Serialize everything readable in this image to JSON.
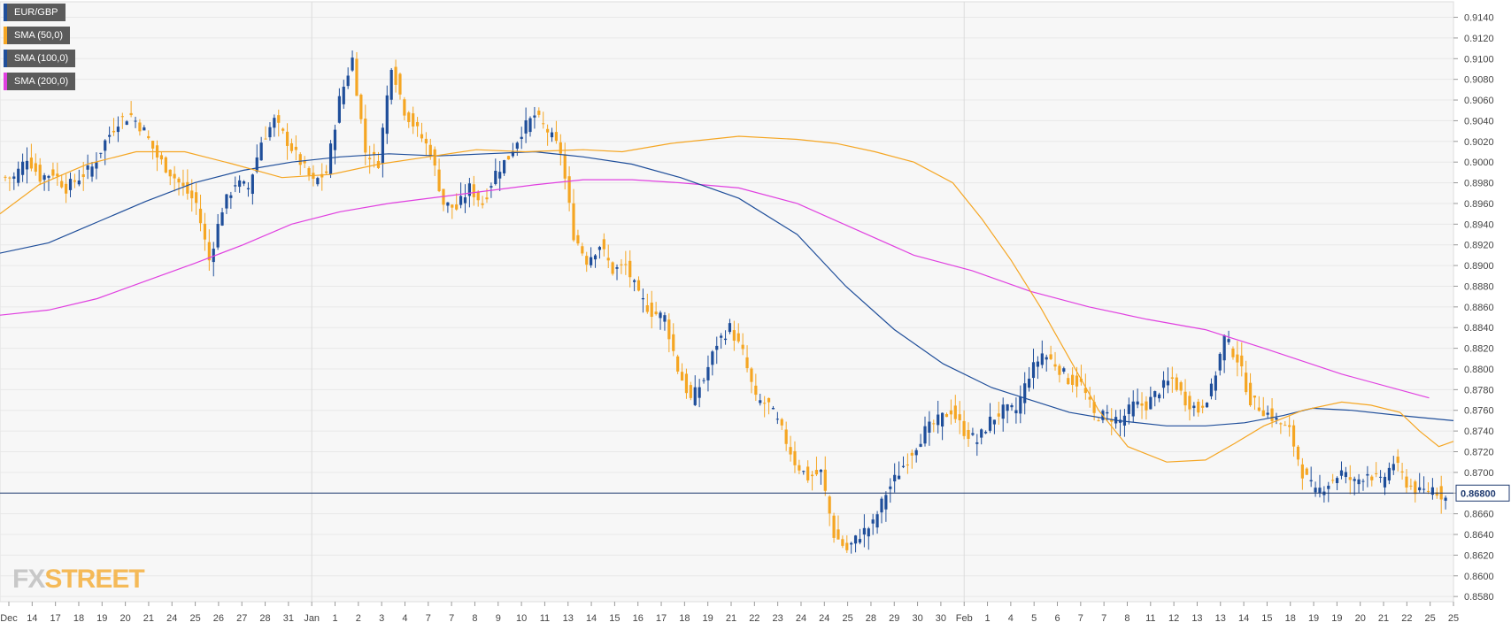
{
  "legend": [
    {
      "label": "EUR/GBP",
      "color": "#1f4e9a"
    },
    {
      "label": "SMA (50,0)",
      "color": "#f5a623"
    },
    {
      "label": "SMA (100,0)",
      "color": "#1f4e9a"
    },
    {
      "label": "SMA (200,0)",
      "color": "#e040e0"
    }
  ],
  "logo": {
    "part1": "FX",
    "part2": "STREET"
  },
  "chart_data": {
    "type": "candlestick",
    "symbol": "EUR/GBP",
    "ylim": [
      0.8575,
      0.9155
    ],
    "y_ticks": [
      "0.9140",
      "0.9120",
      "0.9100",
      "0.9080",
      "0.9060",
      "0.9040",
      "0.9020",
      "0.9000",
      "0.8980",
      "0.8960",
      "0.8940",
      "0.8920",
      "0.8900",
      "0.8880",
      "0.8860",
      "0.8840",
      "0.8820",
      "0.8800",
      "0.8780",
      "0.8760",
      "0.8740",
      "0.8720",
      "0.8700",
      "0.8680",
      "0.8660",
      "0.8640",
      "0.8620",
      "0.8600",
      "0.8580"
    ],
    "x_ticks": [
      "Dec",
      "14",
      "17",
      "18",
      "19",
      "20",
      "21",
      "24",
      "25",
      "26",
      "27",
      "28",
      "31",
      "Jan",
      "1",
      "2",
      "3",
      "4",
      "7",
      "7",
      "8",
      "9",
      "10",
      "11",
      "13",
      "14",
      "15",
      "16",
      "17",
      "18",
      "19",
      "21",
      "22",
      "23",
      "24",
      "24",
      "25",
      "28",
      "29",
      "30",
      "30",
      "Feb",
      "1",
      "4",
      "5",
      "6",
      "7",
      "7",
      "8",
      "11",
      "12",
      "13",
      "13",
      "14",
      "15",
      "18",
      "19",
      "19",
      "20",
      "21",
      "22",
      "25",
      "25"
    ],
    "current_price": "0.86800",
    "current_price_value": 0.868,
    "colors": {
      "up": "#1f4e9a",
      "down": "#f5a623",
      "sma50": "#f5a623",
      "sma100": "#1f4e9a",
      "sma200": "#e040e0",
      "grid": "#e8e8e8",
      "price_line": "#1f3a70"
    },
    "sma50": [
      0.895,
      0.8978,
      0.8998,
      0.901,
      0.901,
      0.8998,
      0.8985,
      0.8988,
      0.8998,
      0.9005,
      0.9012,
      0.901,
      0.9012,
      0.901,
      0.9018,
      0.9025,
      0.9022,
      0.9018,
      0.901,
      0.9,
      0.898,
      0.8945,
      0.8905,
      0.886,
      0.881,
      0.876,
      0.8725,
      0.871,
      0.8712,
      0.8728,
      0.8745,
      0.876,
      0.8768,
      0.8765,
      0.8758,
      0.874,
      0.8725,
      0.873
    ],
    "sma50_x": [
      0,
      40,
      90,
      140,
      190,
      240,
      290,
      340,
      390,
      440,
      490,
      540,
      600,
      640,
      690,
      760,
      820,
      860,
      900,
      940,
      980,
      1010,
      1040,
      1070,
      1100,
      1130,
      1160,
      1200,
      1240,
      1270,
      1300,
      1340,
      1380,
      1410,
      1440,
      1460,
      1480,
      1495
    ],
    "sma100": [
      0.8912,
      0.8922,
      0.8942,
      0.8962,
      0.898,
      0.8992,
      0.9,
      0.9005,
      0.9008,
      0.9006,
      0.9008,
      0.901,
      0.9005,
      0.8998,
      0.8985,
      0.8965,
      0.893,
      0.888,
      0.8838,
      0.8805,
      0.8782,
      0.877,
      0.8758,
      0.875,
      0.8745,
      0.8745,
      0.8748,
      0.8755,
      0.8762,
      0.876,
      0.8755,
      0.875
    ],
    "sma100_x": [
      0,
      50,
      100,
      150,
      200,
      250,
      300,
      350,
      400,
      450,
      500,
      550,
      600,
      650,
      700,
      760,
      820,
      870,
      920,
      970,
      1020,
      1060,
      1100,
      1150,
      1200,
      1240,
      1280,
      1320,
      1350,
      1390,
      1440,
      1495
    ],
    "sma200": [
      0.8852,
      0.8857,
      0.8868,
      0.8885,
      0.8902,
      0.892,
      0.894,
      0.8952,
      0.896,
      0.8966,
      0.8972,
      0.8978,
      0.8983,
      0.8983,
      0.898,
      0.8975,
      0.896,
      0.8935,
      0.891,
      0.8895,
      0.8875,
      0.886,
      0.8848,
      0.8838,
      0.882,
      0.8795,
      0.8772
    ],
    "sma200_x": [
      0,
      50,
      100,
      150,
      200,
      250,
      300,
      350,
      400,
      450,
      500,
      550,
      600,
      650,
      700,
      760,
      820,
      880,
      940,
      1000,
      1060,
      1120,
      1180,
      1240,
      1300,
      1380,
      1470
    ],
    "candles_plan": [
      0.8985,
      0.9005,
      0.8985,
      0.899,
      0.8975,
      0.8985,
      0.8995,
      0.902,
      0.904,
      0.9045,
      0.903,
      0.9005,
      0.899,
      0.8975,
      0.896,
      0.8905,
      0.8955,
      0.898,
      0.8975,
      0.902,
      0.904,
      0.902,
      0.9,
      0.898,
      0.899,
      0.906,
      0.91,
      0.901,
      0.9,
      0.9095,
      0.905,
      0.903,
      0.901,
      0.896,
      0.8955,
      0.8975,
      0.896,
      0.899,
      0.9005,
      0.903,
      0.9045,
      0.903,
      0.901,
      0.893,
      0.8905,
      0.892,
      0.8895,
      0.89,
      0.887,
      0.8855,
      0.885,
      0.88,
      0.877,
      0.879,
      0.8825,
      0.884,
      0.8815,
      0.877,
      0.8765,
      0.874,
      0.871,
      0.8695,
      0.87,
      0.864,
      0.8625,
      0.864,
      0.865,
      0.868,
      0.87,
      0.872,
      0.874,
      0.875,
      0.876,
      0.874,
      0.873,
      0.875,
      0.876,
      0.876,
      0.8795,
      0.8815,
      0.8805,
      0.879,
      0.8785,
      0.8755,
      0.8755,
      0.875,
      0.8765,
      0.8765,
      0.878,
      0.879,
      0.877,
      0.876,
      0.878,
      0.883,
      0.881,
      0.877,
      0.876,
      0.875,
      0.874,
      0.87,
      0.868,
      0.869,
      0.87,
      0.869,
      0.87,
      0.869,
      0.871,
      0.869,
      0.868,
      0.8685,
      0.8675
    ]
  }
}
